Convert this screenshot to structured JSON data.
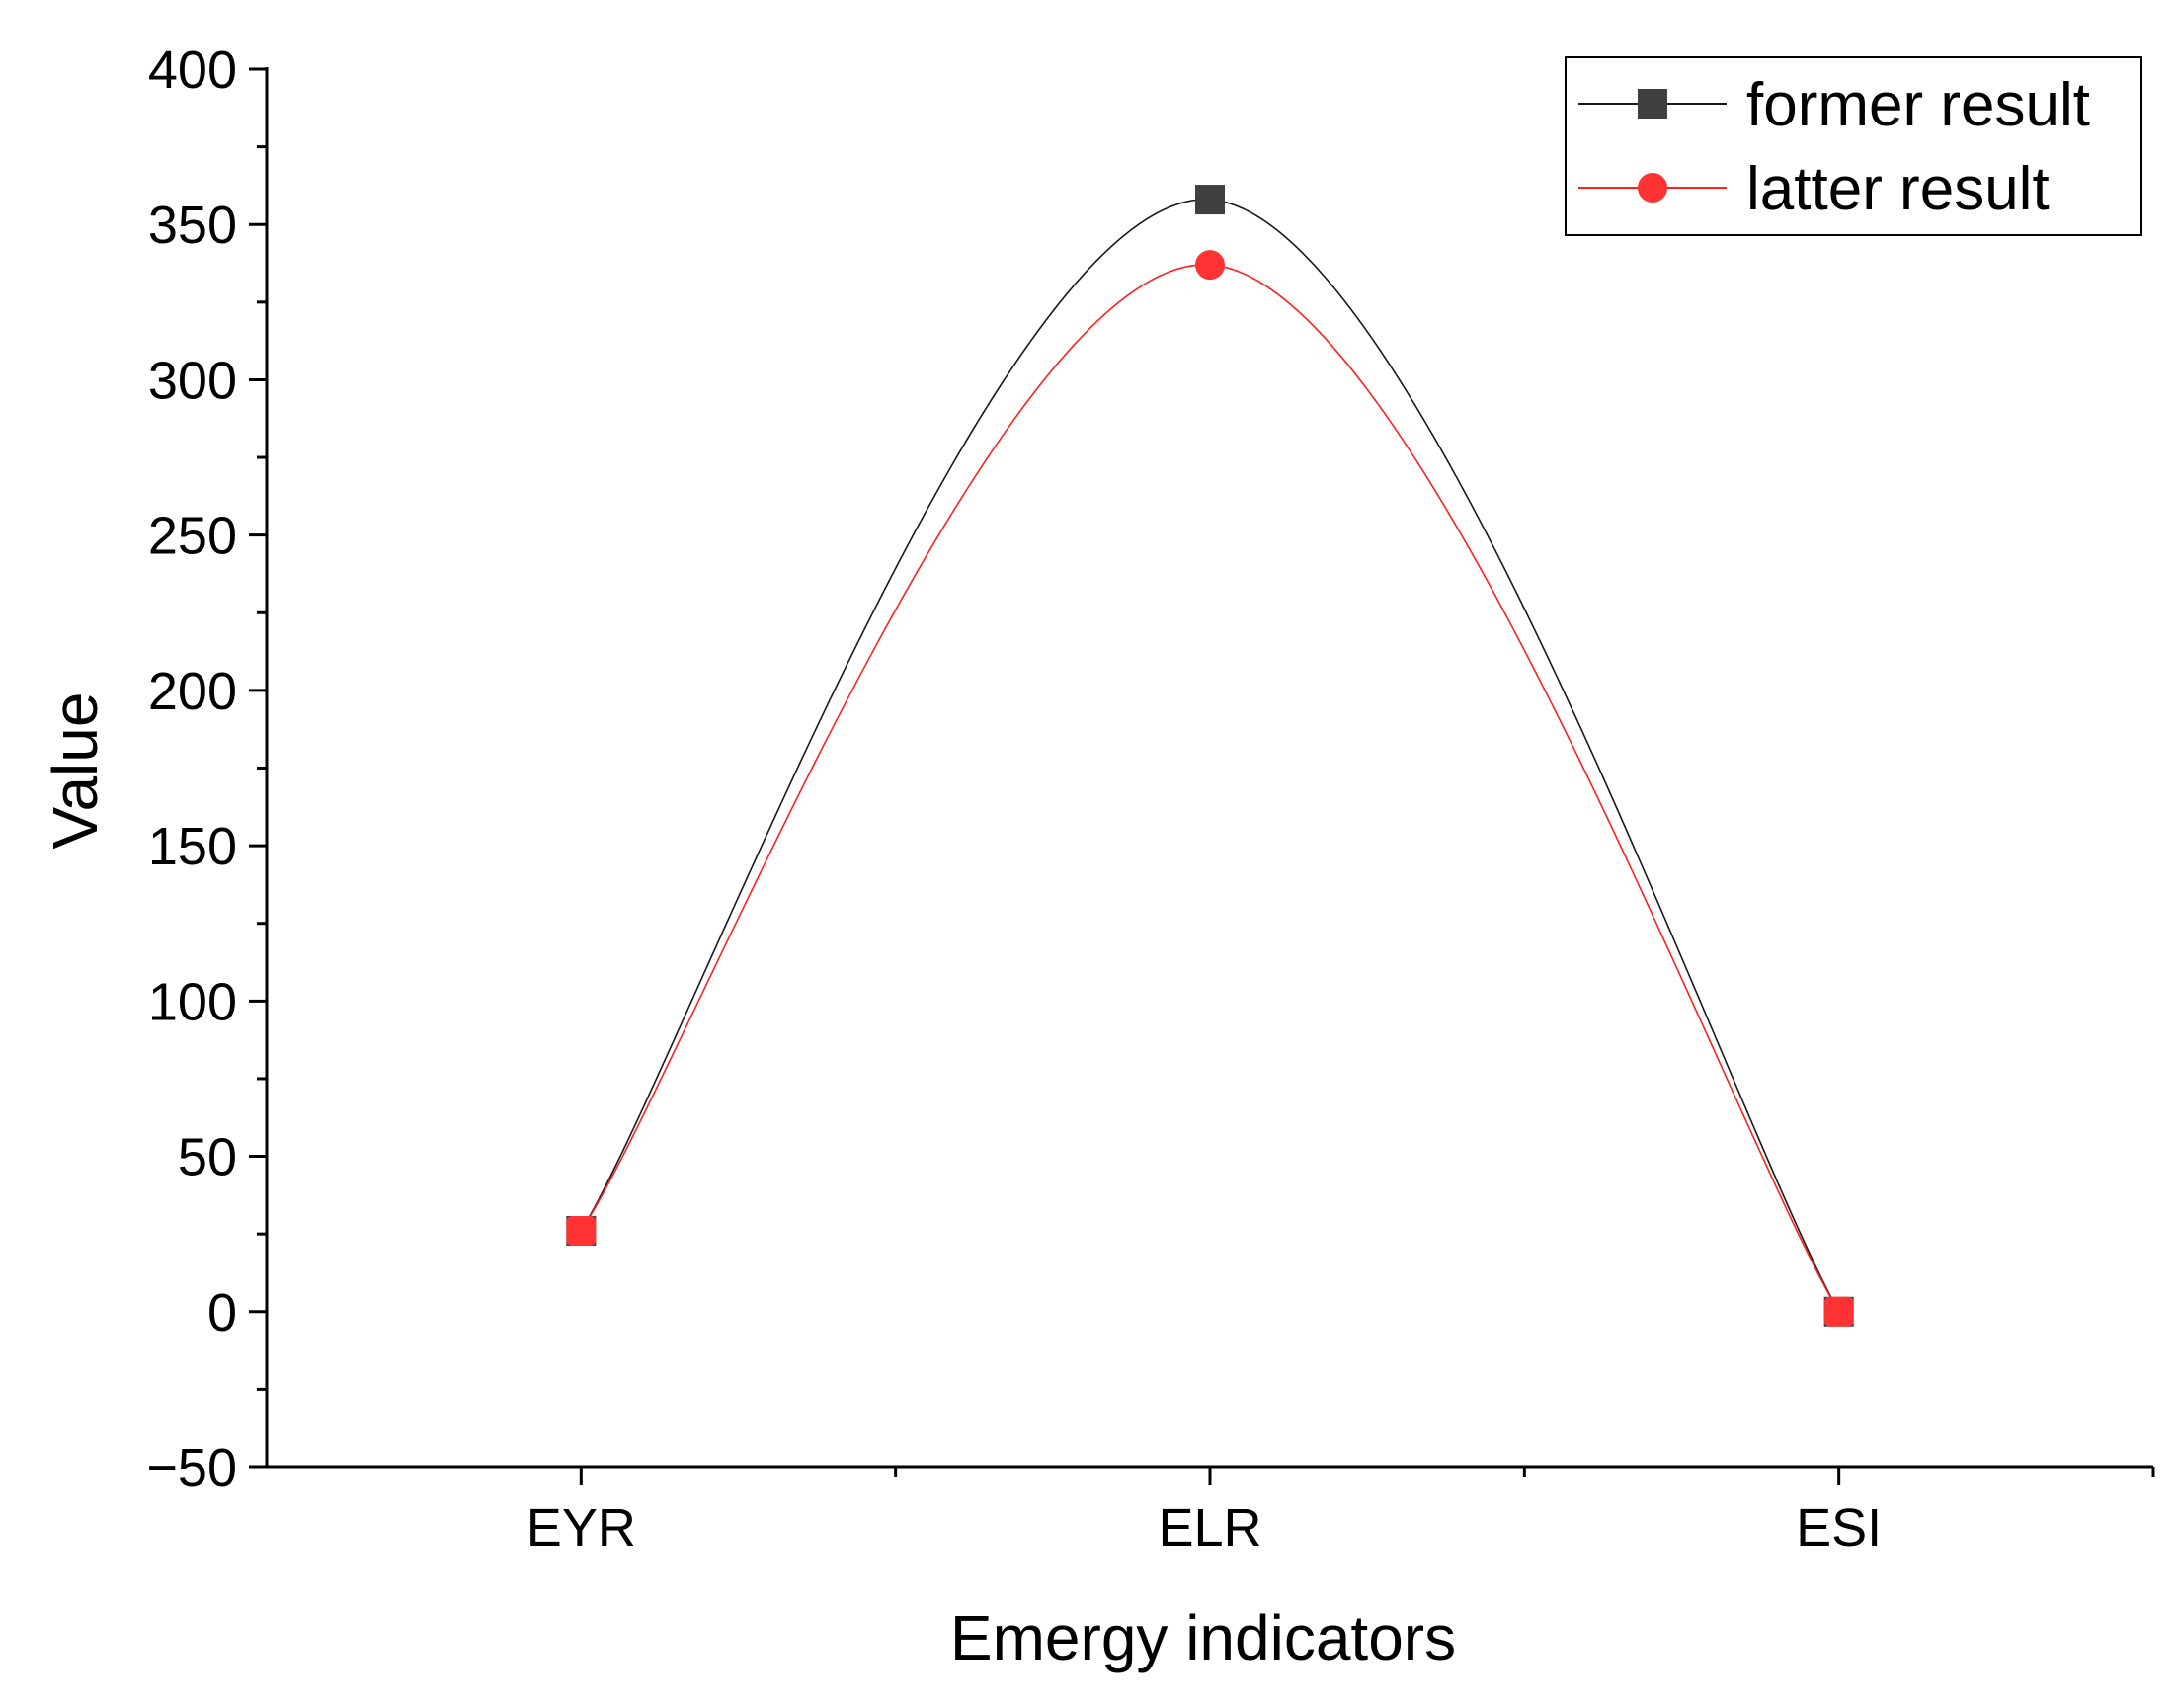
{
  "chart_data": {
    "type": "line",
    "title": "",
    "xlabel": "Emergy indicators",
    "ylabel": "Value",
    "categories": [
      "EYR",
      "ELR",
      "ESI"
    ],
    "ylim": [
      -50,
      400
    ],
    "yticks": [
      -50,
      0,
      50,
      100,
      150,
      200,
      250,
      300,
      350,
      400
    ],
    "ytick_labels": [
      "−50",
      "0",
      "50",
      "100",
      "150",
      "200",
      "250",
      "300",
      "350",
      "400"
    ],
    "grid": false,
    "smooth": true,
    "legend_position": "top-right",
    "series": [
      {
        "name": "former result",
        "values": [
          26,
          358,
          0
        ],
        "color": "#1a1a1a",
        "marker": "square",
        "marker_color": "#3f3f3f"
      },
      {
        "name": "latter result",
        "values": [
          26,
          337,
          0
        ],
        "color": "#ff2020",
        "marker": "circle",
        "marker_color": "#ff3333"
      }
    ]
  }
}
